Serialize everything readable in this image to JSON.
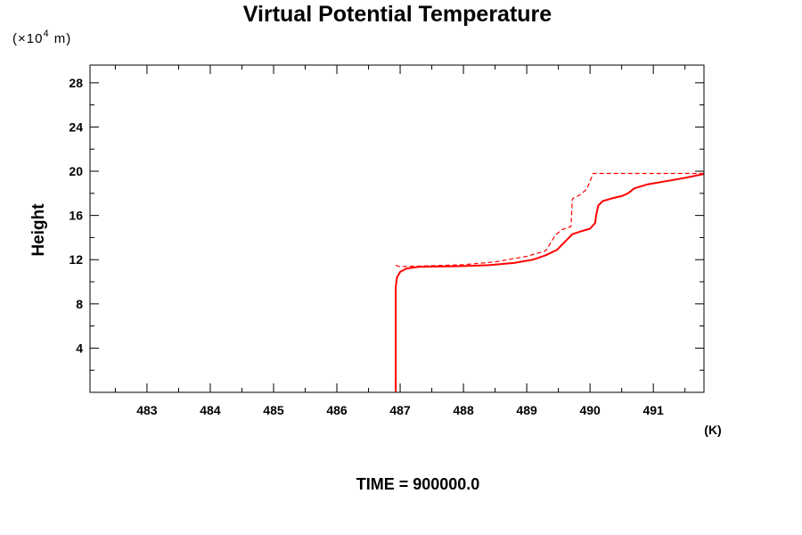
{
  "chart_data": {
    "type": "line",
    "title": "Virtual Potential Temperature",
    "y_unit_prefix": "(×10",
    "y_unit_exponent": "4",
    "y_unit_suffix": " m)",
    "ylabel": "Height",
    "xunit": "(K)",
    "footer": "TIME = 900000.0",
    "xlim": [
      482.1,
      491.8
    ],
    "ylim": [
      0,
      29.6
    ],
    "x_ticks": [
      "483",
      "484",
      "485",
      "486",
      "487",
      "488",
      "489",
      "490",
      "491"
    ],
    "x_tick_values": [
      483,
      484,
      485,
      486,
      487,
      488,
      489,
      490,
      491
    ],
    "y_ticks": [
      "4",
      "8",
      "12",
      "16",
      "20",
      "24",
      "28"
    ],
    "y_tick_values": [
      4,
      8,
      12,
      16,
      20,
      24,
      28
    ],
    "grid": false,
    "colors": {
      "line": "#ff0000",
      "axis": "#000000",
      "text": "#000000"
    },
    "series": [
      {
        "style": "solid",
        "x": [
          486.93,
          486.93,
          486.95,
          487.0,
          487.1,
          487.3,
          487.6,
          488.0,
          488.4,
          488.8,
          489.1,
          489.3,
          489.48,
          489.6,
          489.72,
          489.85,
          490.0,
          490.08,
          490.1,
          490.13,
          490.2,
          490.35,
          490.5,
          490.6,
          490.7,
          490.9,
          491.2,
          491.5,
          491.8
        ],
        "y": [
          0,
          9.5,
          10.4,
          10.9,
          11.2,
          11.35,
          11.38,
          11.42,
          11.5,
          11.7,
          12.0,
          12.4,
          12.9,
          13.6,
          14.3,
          14.55,
          14.8,
          15.3,
          16.1,
          16.9,
          17.3,
          17.55,
          17.75,
          18.0,
          18.45,
          18.8,
          19.1,
          19.4,
          19.75
        ]
      },
      {
        "style": "dashed",
        "x": [
          486.93,
          487.0,
          487.1,
          487.5,
          488.0,
          488.5,
          489.0,
          489.3,
          489.45,
          489.55,
          489.7,
          489.72,
          489.85,
          489.95,
          490.05,
          490.5,
          491.0,
          491.8
        ],
        "y": [
          11.5,
          11.35,
          11.4,
          11.45,
          11.55,
          11.8,
          12.3,
          12.8,
          14.2,
          14.7,
          15.0,
          17.5,
          17.9,
          18.4,
          19.8,
          19.8,
          19.8,
          19.8
        ]
      }
    ]
  }
}
